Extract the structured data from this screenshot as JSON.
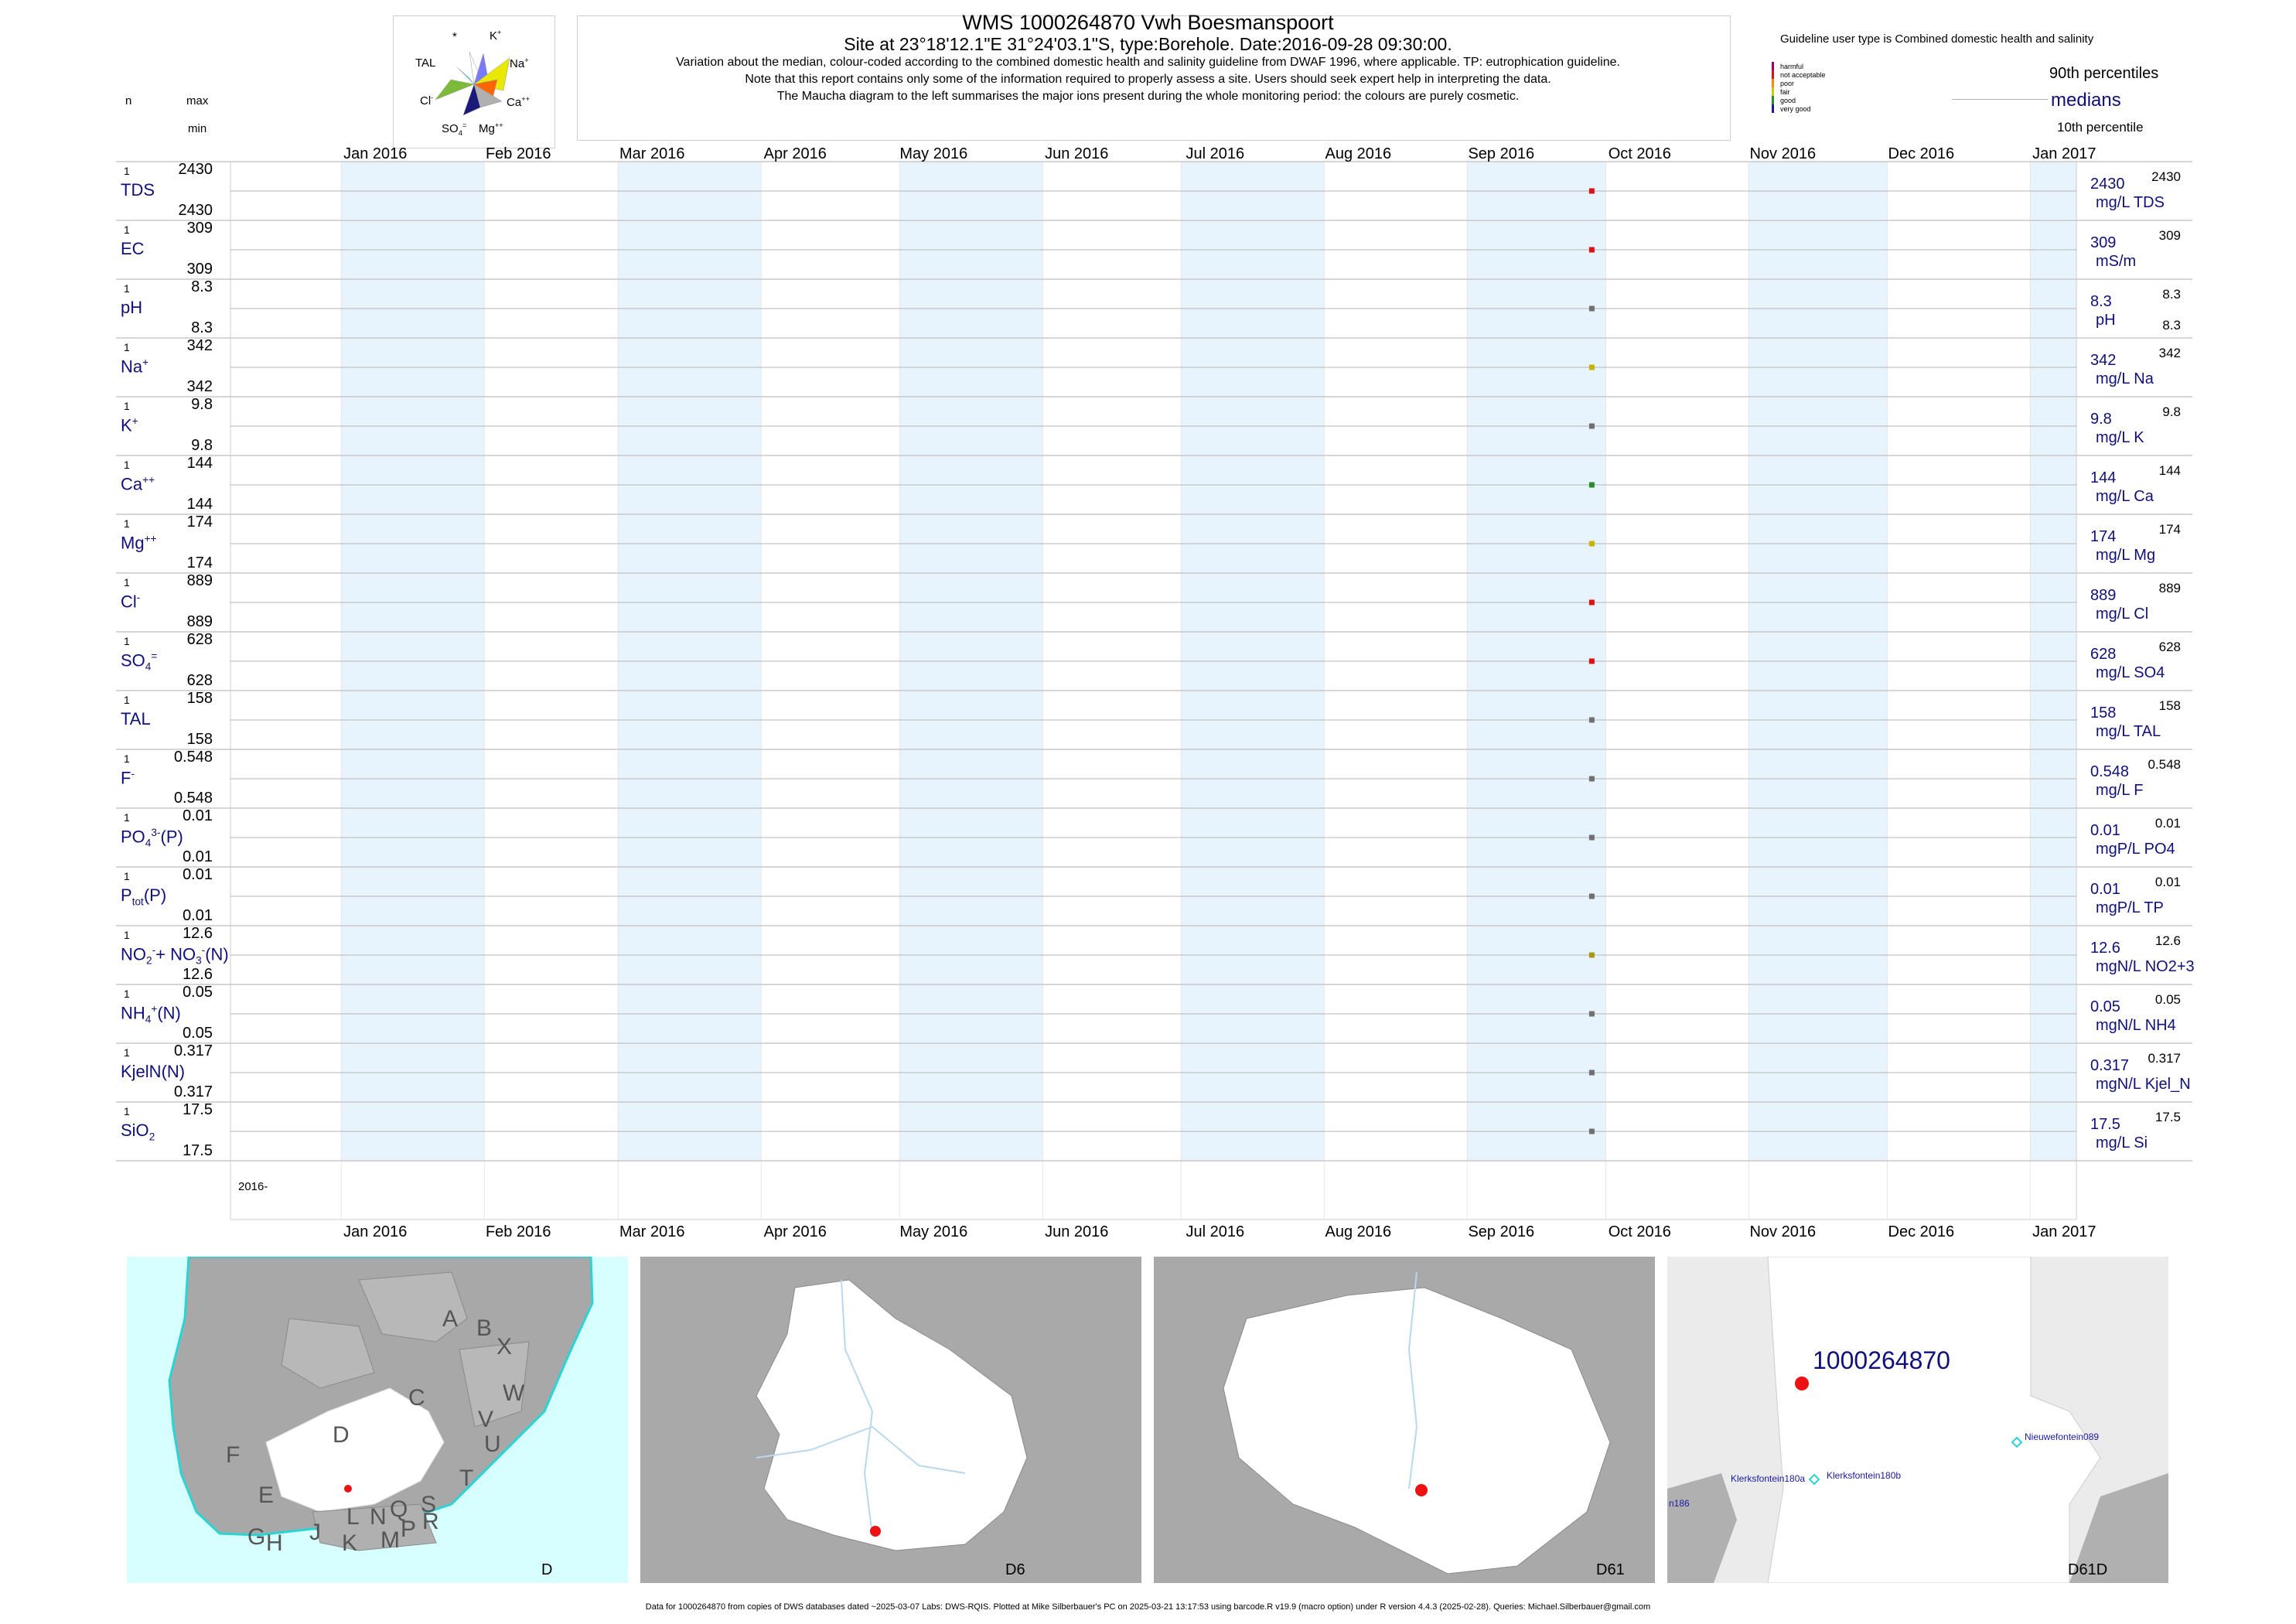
{
  "header": {
    "title": "WMS 1000264870  Vwh Boesmanspoort",
    "site_line": "Site at 23°18'12.1\"E 31°24'03.1\"S, type:Borehole. Date:2016-09-28 09:30:00.",
    "note1": "Variation about the median,  colour-coded according to the combined domestic health and salinity guideline from DWAF 1996, where applicable. TP: eutrophication guideline.",
    "note2": "Note that this report contains only some of the information required to properly assess a site. Users should seek expert help in interpreting the data.",
    "note3": "The Maucha diagram to the left summarises the major ions present during the whole monitoring period: the colours are purely cosmetic."
  },
  "maucha": {
    "labels": {
      "star": "*",
      "k": "K+",
      "tal": "TAL",
      "na": "Na+",
      "cl": "Cl-",
      "ca": "Ca++",
      "so4": "SO4=",
      "mg": "Mg++"
    }
  },
  "guideline_legend": {
    "title": "Guideline user type is Combined domestic health and salinity",
    "levels": [
      {
        "label": "harmful",
        "color": "#a0006a"
      },
      {
        "label": "not acceptable",
        "color": "#dd1111"
      },
      {
        "label": "poor",
        "color": "#ff8800"
      },
      {
        "label": "fair",
        "color": "#cccc00"
      },
      {
        "label": "good",
        "color": "#2c8c2c"
      },
      {
        "label": "very good",
        "color": "#1a1aa0"
      }
    ],
    "p90": "90th percentiles",
    "medians": "medians",
    "p10": "10th percentile"
  },
  "left_header": {
    "n": "n",
    "max": "max",
    "min": "min"
  },
  "chart_data": {
    "type": "scatter",
    "x_axis": {
      "months": [
        "Jan 2016",
        "Feb 2016",
        "Mar 2016",
        "Apr 2016",
        "May 2016",
        "Jun 2016",
        "Jul 2016",
        "Aug 2016",
        "Sep 2016",
        "Oct 2016",
        "Nov 2016",
        "Dec 2016",
        "Jan 2017"
      ],
      "year_label": "2016-"
    },
    "sample_date": "2016-09-28",
    "series": [
      {
        "name": "TDS",
        "n": "1",
        "max": "2430",
        "min": "2430",
        "value": "2430",
        "unit": "mg/L TDS",
        "r_max": "2430",
        "r_min": "",
        "color": "#dd1111"
      },
      {
        "name": "EC",
        "n": "1",
        "max": "309",
        "min": "309",
        "value": "309",
        "unit": "mS/m",
        "r_max": "309",
        "r_min": "",
        "color": "#dd1111"
      },
      {
        "name": "pH",
        "n": "1",
        "max": "8.3",
        "min": "8.3",
        "value": "8.3",
        "unit": "pH",
        "r_max": "8.3",
        "r_min": "8.3",
        "color": "#707070"
      },
      {
        "name": "Na+",
        "n": "1",
        "max": "342",
        "min": "342",
        "value": "342",
        "unit": "mg/L Na",
        "r_max": "342",
        "r_min": "",
        "color": "#c8b400"
      },
      {
        "name": "K+",
        "n": "1",
        "max": "9.8",
        "min": "9.8",
        "value": "9.8",
        "unit": "mg/L K",
        "r_max": "9.8",
        "r_min": "",
        "color": "#707070"
      },
      {
        "name": "Ca++",
        "n": "1",
        "max": "144",
        "min": "144",
        "value": "144",
        "unit": "mg/L Ca",
        "r_max": "144",
        "r_min": "",
        "color": "#2c8c2c"
      },
      {
        "name": "Mg++",
        "n": "1",
        "max": "174",
        "min": "174",
        "value": "174",
        "unit": "mg/L Mg",
        "r_max": "174",
        "r_min": "",
        "color": "#c8b400"
      },
      {
        "name": "Cl-",
        "n": "1",
        "max": "889",
        "min": "889",
        "value": "889",
        "unit": "mg/L Cl",
        "r_max": "889",
        "r_min": "",
        "color": "#dd1111"
      },
      {
        "name": "SO4=",
        "n": "1",
        "max": "628",
        "min": "628",
        "value": "628",
        "unit": "mg/L SO4",
        "r_max": "628",
        "r_min": "",
        "color": "#dd1111"
      },
      {
        "name": "TAL",
        "n": "1",
        "max": "158",
        "min": "158",
        "value": "158",
        "unit": "mg/L TAL",
        "r_max": "158",
        "r_min": "",
        "color": "#707070"
      },
      {
        "name": "F-",
        "n": "1",
        "max": "0.548",
        "min": "0.548",
        "value": "0.548",
        "unit": "mg/L F",
        "r_max": "0.548",
        "r_min": "",
        "color": "#707070"
      },
      {
        "name": "PO4 3-(P)",
        "n": "1",
        "max": "0.01",
        "min": "0.01",
        "value": "0.01",
        "unit": "mgP/L PO4",
        "r_max": "0.01",
        "r_min": "",
        "color": "#707070"
      },
      {
        "name": "Ptot(P)",
        "n": "1",
        "max": "0.01",
        "min": "0.01",
        "value": "0.01",
        "unit": "mgP/L TP",
        "r_max": "0.01",
        "r_min": "",
        "color": "#707070"
      },
      {
        "name": "NO2- + NO3-(N)",
        "n": "1",
        "max": "12.6",
        "min": "12.6",
        "value": "12.6",
        "unit": "mgN/L NO2+3",
        "r_max": "12.6",
        "r_min": "",
        "color": "#a89a10"
      },
      {
        "name": "NH4+(N)",
        "n": "1",
        "max": "0.05",
        "min": "0.05",
        "value": "0.05",
        "unit": "mgN/L NH4",
        "r_max": "0.05",
        "r_min": "",
        "color": "#707070"
      },
      {
        "name": "KjelN(N)",
        "n": "1",
        "max": "0.317",
        "min": "0.317",
        "value": "0.317",
        "unit": "mgN/L Kjel_N",
        "r_max": "0.317",
        "r_min": "",
        "color": "#707070"
      },
      {
        "name": "SiO2",
        "n": "1",
        "max": "17.5",
        "min": "17.5",
        "value": "17.5",
        "unit": "mg/L Si",
        "r_max": "17.5",
        "r_min": "",
        "color": "#707070"
      }
    ]
  },
  "maps": [
    {
      "label": "D",
      "regions": [
        "A",
        "B",
        "X",
        "C",
        "W",
        "V",
        "U",
        "T",
        "D",
        "F",
        "E",
        "G",
        "H",
        "J",
        "K",
        "L",
        "M",
        "N",
        "P",
        "Q",
        "R",
        "S"
      ]
    },
    {
      "label": "D6"
    },
    {
      "label": "D61"
    },
    {
      "label": "D61D",
      "site_id": "1000264870",
      "nearby": [
        "Nieuwefontein089",
        "Klerksfontein180a",
        "Klerksfontein180b",
        "n186"
      ]
    }
  ],
  "footer": "Data for 1000264870 from copies of DWS databases dated ~2025-03-07 Labs: DWS-RQIS. Plotted at Mike Silberbauer's PC on 2025-03-21 13:17:53 using barcode.R v19.9 (macro option) under R version 4.4.3 (2025-02-28). Queries: Michael.Silberbauer@gmail.com"
}
